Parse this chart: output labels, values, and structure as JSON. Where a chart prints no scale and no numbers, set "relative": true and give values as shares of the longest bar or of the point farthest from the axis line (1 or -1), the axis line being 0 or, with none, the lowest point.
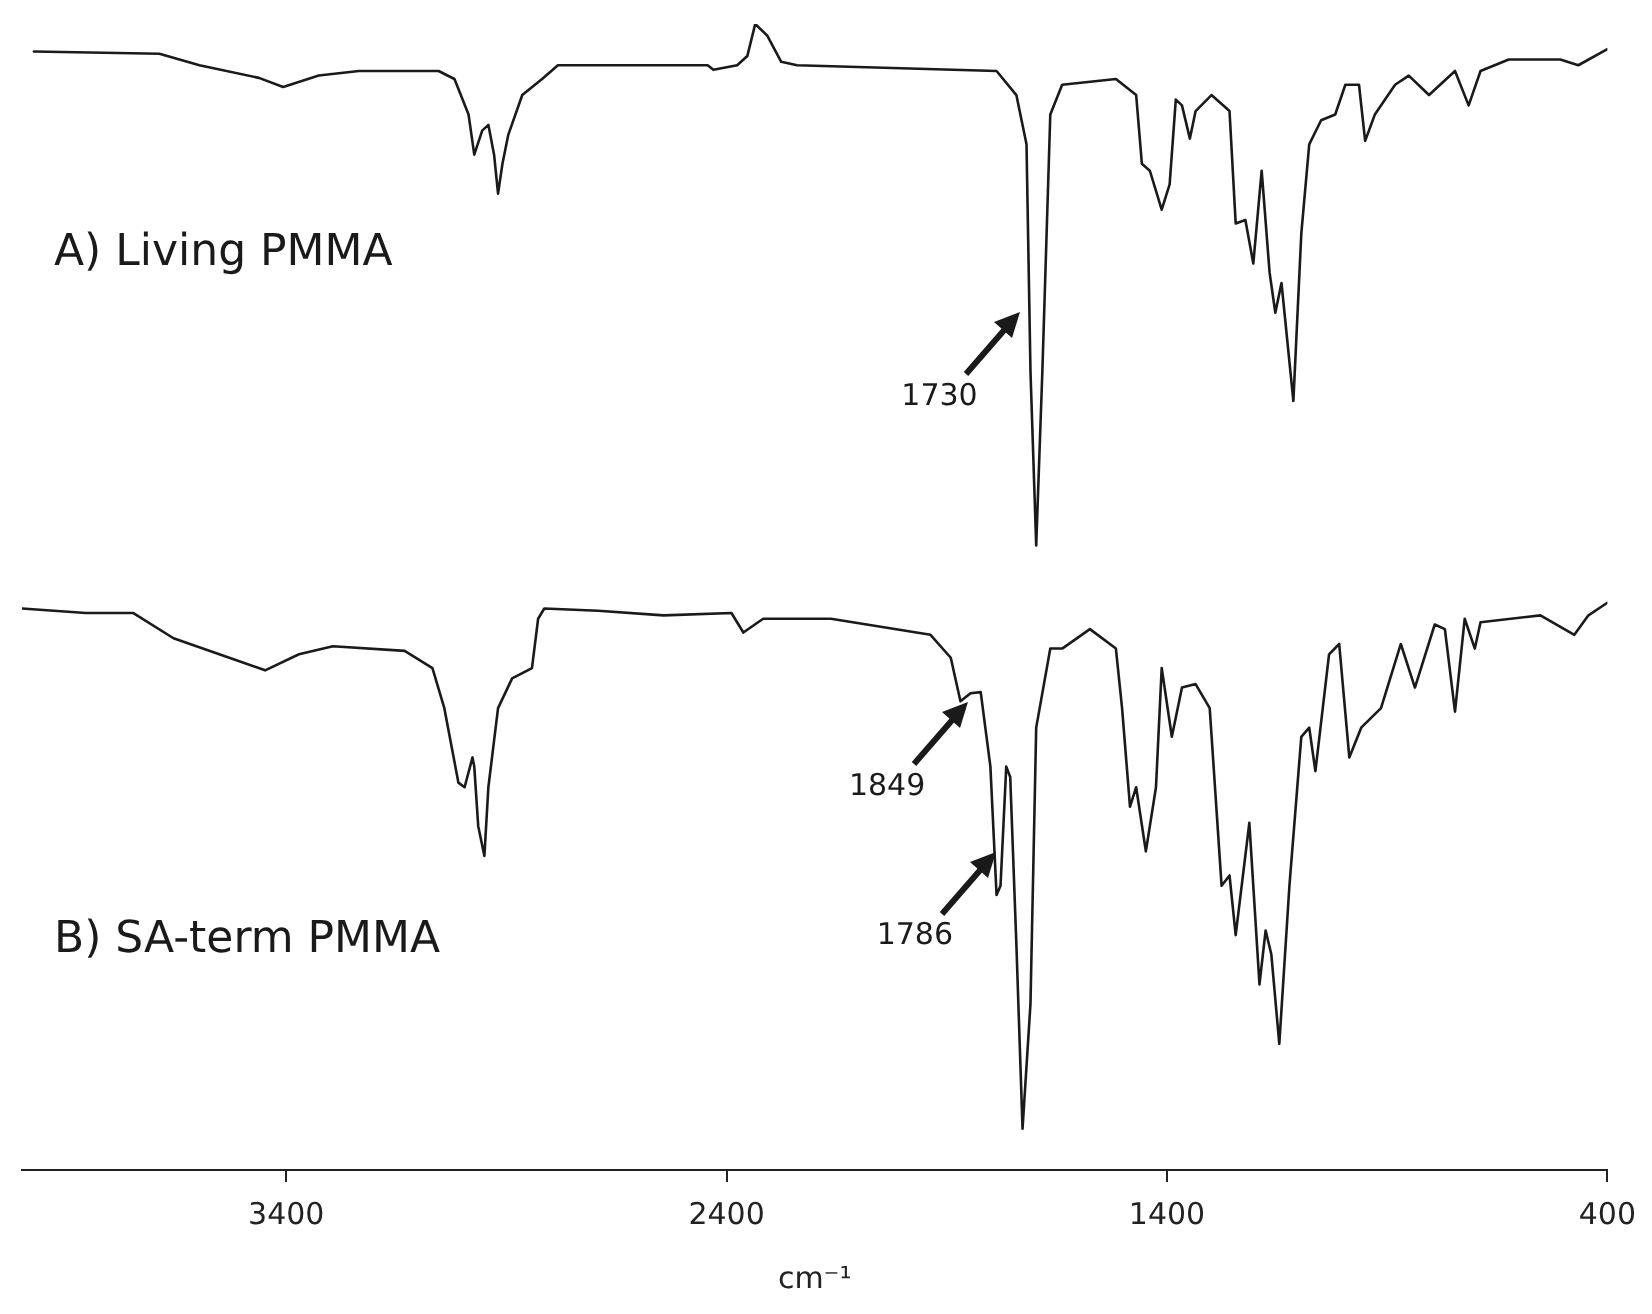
{
  "chart_data": {
    "type": "line",
    "relative": true,
    "xlabel": "cm⁻¹",
    "xlim": [
      4000,
      400
    ],
    "xticks": [
      3400,
      2400,
      1400,
      400
    ],
    "grid": false,
    "legend": false,
    "marker": "none",
    "line_style": "solid",
    "annotations": [
      "A) Living PMMA",
      "B) SA-term PMMA",
      {
        "text": "1730",
        "x": 1730,
        "y": 0.75
      },
      {
        "text": "1849",
        "x": 1849,
        "y": 0.41
      },
      {
        "text": "1786",
        "x": 1786,
        "y": 0.28
      }
    ],
    "series": [
      {
        "color": "#1a1a1a",
        "x": [
          3973,
          3688,
          3597,
          3462,
          3407,
          3326,
          3235,
          3054,
          3018,
          2986,
          2973,
          2955,
          2941,
          2928,
          2919,
          2909,
          2896,
          2864,
          2819,
          2783,
          2692,
          2443,
          2430,
          2376,
          2353,
          2335,
          2308,
          2276,
          2240,
          1787,
          1742,
          1719,
          1710,
          1697,
          1683,
          1665,
          1638,
          1516,
          1470,
          1457,
          1439,
          1412,
          1394,
          1380,
          1366,
          1348,
          1335,
          1299,
          1258,
          1244,
          1222,
          1204,
          1185,
          1167,
          1154,
          1140,
          1113,
          1095,
          1077,
          1050,
          1018,
          995,
          964,
          950,
          928,
          882,
          851,
          805,
          746,
          715,
          688,
          624,
          507,
          466,
          400
        ],
        "values": [
          0.976,
          0.974,
          0.964,
          0.953,
          0.945,
          0.955,
          0.959,
          0.959,
          0.952,
          0.921,
          0.886,
          0.907,
          0.912,
          0.886,
          0.852,
          0.878,
          0.903,
          0.938,
          0.952,
          0.964,
          0.964,
          0.964,
          0.96,
          0.964,
          0.972,
          1,
          0.99,
          0.967,
          0.964,
          0.959,
          0.938,
          0.895,
          0.697,
          0.545,
          0.697,
          0.921,
          0.947,
          0.952,
          0.938,
          0.878,
          0.872,
          0.838,
          0.86,
          0.934,
          0.929,
          0.9,
          0.924,
          0.938,
          0.924,
          0.826,
          0.829,
          0.791,
          0.872,
          0.783,
          0.748,
          0.774,
          0.671,
          0.817,
          0.895,
          0.916,
          0.921,
          0.947,
          0.947,
          0.898,
          0.921,
          0.947,
          0.955,
          0.938,
          0.959,
          0.929,
          0.959,
          0.969,
          0.969,
          0.964,
          0.978
        ]
      },
      {
        "color": "#1a1a1a",
        "x": [
          4000,
          3855,
          3747,
          3656,
          3552,
          3448,
          3371,
          3294,
          3131,
          3068,
          3041,
          3009,
          2995,
          2977,
          2973,
          2964,
          2950,
          2941,
          2919,
          2887,
          2842,
          2828,
          2814,
          2692,
          2543,
          2389,
          2362,
          2317,
          2163,
          1937,
          1891,
          1869,
          1846,
          1823,
          1801,
          1787,
          1778,
          1765,
          1756,
          1742,
          1728,
          1710,
          1697,
          1665,
          1638,
          1575,
          1516,
          1502,
          1484,
          1470,
          1448,
          1425,
          1412,
          1389,
          1366,
          1335,
          1303,
          1276,
          1258,
          1244,
          1213,
          1190,
          1176,
          1163,
          1145,
          1122,
          1095,
          1077,
          1063,
          1032,
          1009,
          986,
          959,
          914,
          869,
          837,
          792,
          769,
          746,
          724,
          701,
          688,
          552,
          475,
          443,
          400
        ],
        "values": [
          0.49,
          0.486,
          0.486,
          0.464,
          0.45,
          0.436,
          0.45,
          0.457,
          0.453,
          0.438,
          0.403,
          0.338,
          0.334,
          0.36,
          0.352,
          0.3,
          0.274,
          0.334,
          0.403,
          0.429,
          0.438,
          0.481,
          0.49,
          0.488,
          0.484,
          0.486,
          0.469,
          0.481,
          0.481,
          0.467,
          0.447,
          0.409,
          0.416,
          0.417,
          0.352,
          0.24,
          0.248,
          0.352,
          0.343,
          0.197,
          0.036,
          0.145,
          0.386,
          0.455,
          0.455,
          0.472,
          0.455,
          0.403,
          0.317,
          0.334,
          0.278,
          0.334,
          0.438,
          0.378,
          0.421,
          0.424,
          0.403,
          0.248,
          0.257,
          0.205,
          0.303,
          0.162,
          0.209,
          0.188,
          0.11,
          0.248,
          0.378,
          0.386,
          0.348,
          0.45,
          0.459,
          0.36,
          0.386,
          0.403,
          0.459,
          0.421,
          0.476,
          0.472,
          0.4,
          0.481,
          0.455,
          0.478,
          0.484,
          0.467,
          0.484,
          0.495
        ]
      }
    ]
  }
}
